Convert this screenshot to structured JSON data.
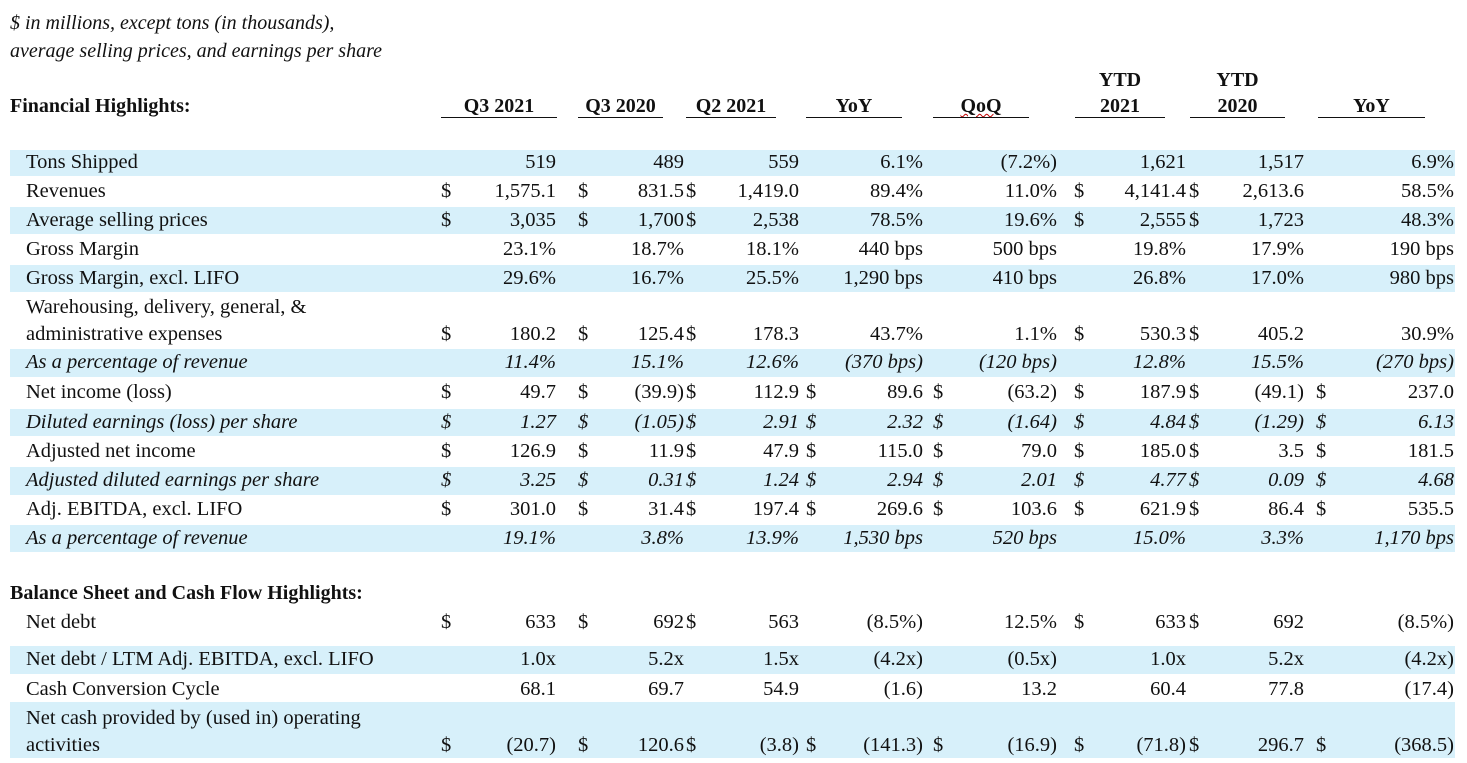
{
  "notes": {
    "line1": "$ in millions, except tons (in thousands),",
    "line2": "average selling prices, and earnings per share"
  },
  "headers": {
    "section_title": "Financial Highlights:",
    "q3_2021": "Q3 2021",
    "q3_2020": "Q3 2020",
    "q2_2021": "Q2 2021",
    "yoy": "YoY",
    "qoq": "QoQ",
    "ytd2021_top": "YTD",
    "ytd2021_bottom": "2021",
    "ytd2020_top": "YTD",
    "ytd2020_bottom": "2020",
    "ytd_yoy": "YoY"
  },
  "balance_title": "Balance Sheet and Cash Flow Highlights:",
  "rows": [
    {
      "label": "Tons Shipped",
      "c": [
        "",
        "519",
        "",
        "489",
        "",
        "559",
        "",
        "6.1%",
        "",
        "(7.2%)",
        "",
        "1,621",
        "",
        "1,517",
        "",
        "6.9%"
      ]
    },
    {
      "label": "Revenues",
      "c": [
        "$",
        "1,575.1",
        "$",
        "831.5",
        "$",
        "1,419.0",
        "",
        "89.4%",
        "",
        "11.0%",
        "$",
        "4,141.4",
        "$",
        "2,613.6",
        "",
        "58.5%"
      ]
    },
    {
      "label": "Average selling prices",
      "c": [
        "$",
        "3,035",
        "$",
        "1,700",
        "$",
        "2,538",
        "",
        "78.5%",
        "",
        "19.6%",
        "$",
        "2,555",
        "$",
        "1,723",
        "",
        "48.3%"
      ]
    },
    {
      "label": "Gross Margin",
      "c": [
        "",
        "23.1%",
        "",
        "18.7%",
        "",
        "18.1%",
        "",
        "440 bps",
        "",
        "500 bps",
        "",
        "19.8%",
        "",
        "17.9%",
        "",
        "190 bps"
      ]
    },
    {
      "label": "Gross Margin, excl. LIFO",
      "c": [
        "",
        "29.6%",
        "",
        "16.7%",
        "",
        "25.5%",
        "",
        "1,290 bps",
        "",
        "410 bps",
        "",
        "26.8%",
        "",
        "17.0%",
        "",
        "980 bps"
      ]
    },
    {
      "label": "Warehousing, delivery, general, &",
      "label2": "administrative expenses",
      "c": [
        "$",
        "180.2",
        "$",
        "125.4",
        "$",
        "178.3",
        "",
        "43.7%",
        "",
        "1.1%",
        "$",
        "530.3",
        "$",
        "405.2",
        "",
        "30.9%"
      ]
    },
    {
      "label": "As a percentage of revenue",
      "c": [
        "",
        "11.4%",
        "",
        "15.1%",
        "",
        "12.6%",
        "",
        "(370 bps)",
        "",
        "(120 bps)",
        "",
        "12.8%",
        "",
        "15.5%",
        "",
        "(270 bps)"
      ]
    },
    {
      "label": "Net income (loss)",
      "c": [
        "$",
        "49.7",
        "$",
        "(39.9)",
        "$",
        "112.9",
        "$",
        "89.6",
        "$",
        "(63.2)",
        "$",
        "187.9",
        "$",
        "(49.1)",
        "$",
        "237.0"
      ]
    },
    {
      "label": "Diluted earnings (loss) per share",
      "c": [
        "$",
        "1.27",
        "$",
        "(1.05)",
        "$",
        "2.91",
        "$",
        "2.32",
        "$",
        "(1.64)",
        "$",
        "4.84",
        "$",
        "(1.29)",
        "$",
        "6.13"
      ]
    },
    {
      "label": "Adjusted net income",
      "c": [
        "$",
        "126.9",
        "$",
        "11.9",
        "$",
        "47.9",
        "$",
        "115.0",
        "$",
        "79.0",
        "$",
        "185.0",
        "$",
        "3.5",
        "$",
        "181.5"
      ]
    },
    {
      "label": "Adjusted diluted earnings per share",
      "c": [
        "$",
        "3.25",
        "$",
        "0.31",
        "$",
        "1.24",
        "$",
        "2.94",
        "$",
        "2.01",
        "$",
        "4.77",
        "$",
        "0.09",
        "$",
        "4.68"
      ]
    },
    {
      "label": "Adj. EBITDA, excl. LIFO",
      "c": [
        "$",
        "301.0",
        "$",
        "31.4",
        "$",
        "197.4",
        "$",
        "269.6",
        "$",
        "103.6",
        "$",
        "621.9",
        "$",
        "86.4",
        "$",
        "535.5"
      ]
    },
    {
      "label": "As a percentage of revenue",
      "c": [
        "",
        "19.1%",
        "",
        "3.8%",
        "",
        "13.9%",
        "",
        "1,530 bps",
        "",
        "520 bps",
        "",
        "15.0%",
        "",
        "3.3%",
        "",
        "1,170 bps"
      ]
    },
    {
      "label": "Net debt",
      "c": [
        "$",
        "633",
        "$",
        "692",
        "$",
        "563",
        "",
        "(8.5%)",
        "",
        "12.5%",
        "$",
        "633",
        "$",
        "692",
        "",
        "(8.5%)"
      ]
    },
    {
      "label": "Net debt / LTM Adj. EBITDA, excl. LIFO",
      "c": [
        "",
        "1.0x",
        "",
        "5.2x",
        "",
        "1.5x",
        "",
        "(4.2x)",
        "",
        "(0.5x)",
        "",
        "1.0x",
        "",
        "5.2x",
        "",
        "(4.2x)"
      ]
    },
    {
      "label": "Cash Conversion Cycle",
      "c": [
        "",
        "68.1",
        "",
        "69.7",
        "",
        "54.9",
        "",
        "(1.6)",
        "",
        "13.2",
        "",
        "60.4",
        "",
        "77.8",
        "",
        "(17.4)"
      ]
    },
    {
      "label": "Net cash provided by (used in) operating",
      "label2": "activities",
      "c": [
        "$",
        "(20.7)",
        "$",
        "120.6",
        "$",
        "(3.8)",
        "$",
        "(141.3)",
        "$",
        "(16.9)",
        "$",
        "(71.8)",
        "$",
        "296.7",
        "$",
        "(368.5)"
      ]
    }
  ]
}
